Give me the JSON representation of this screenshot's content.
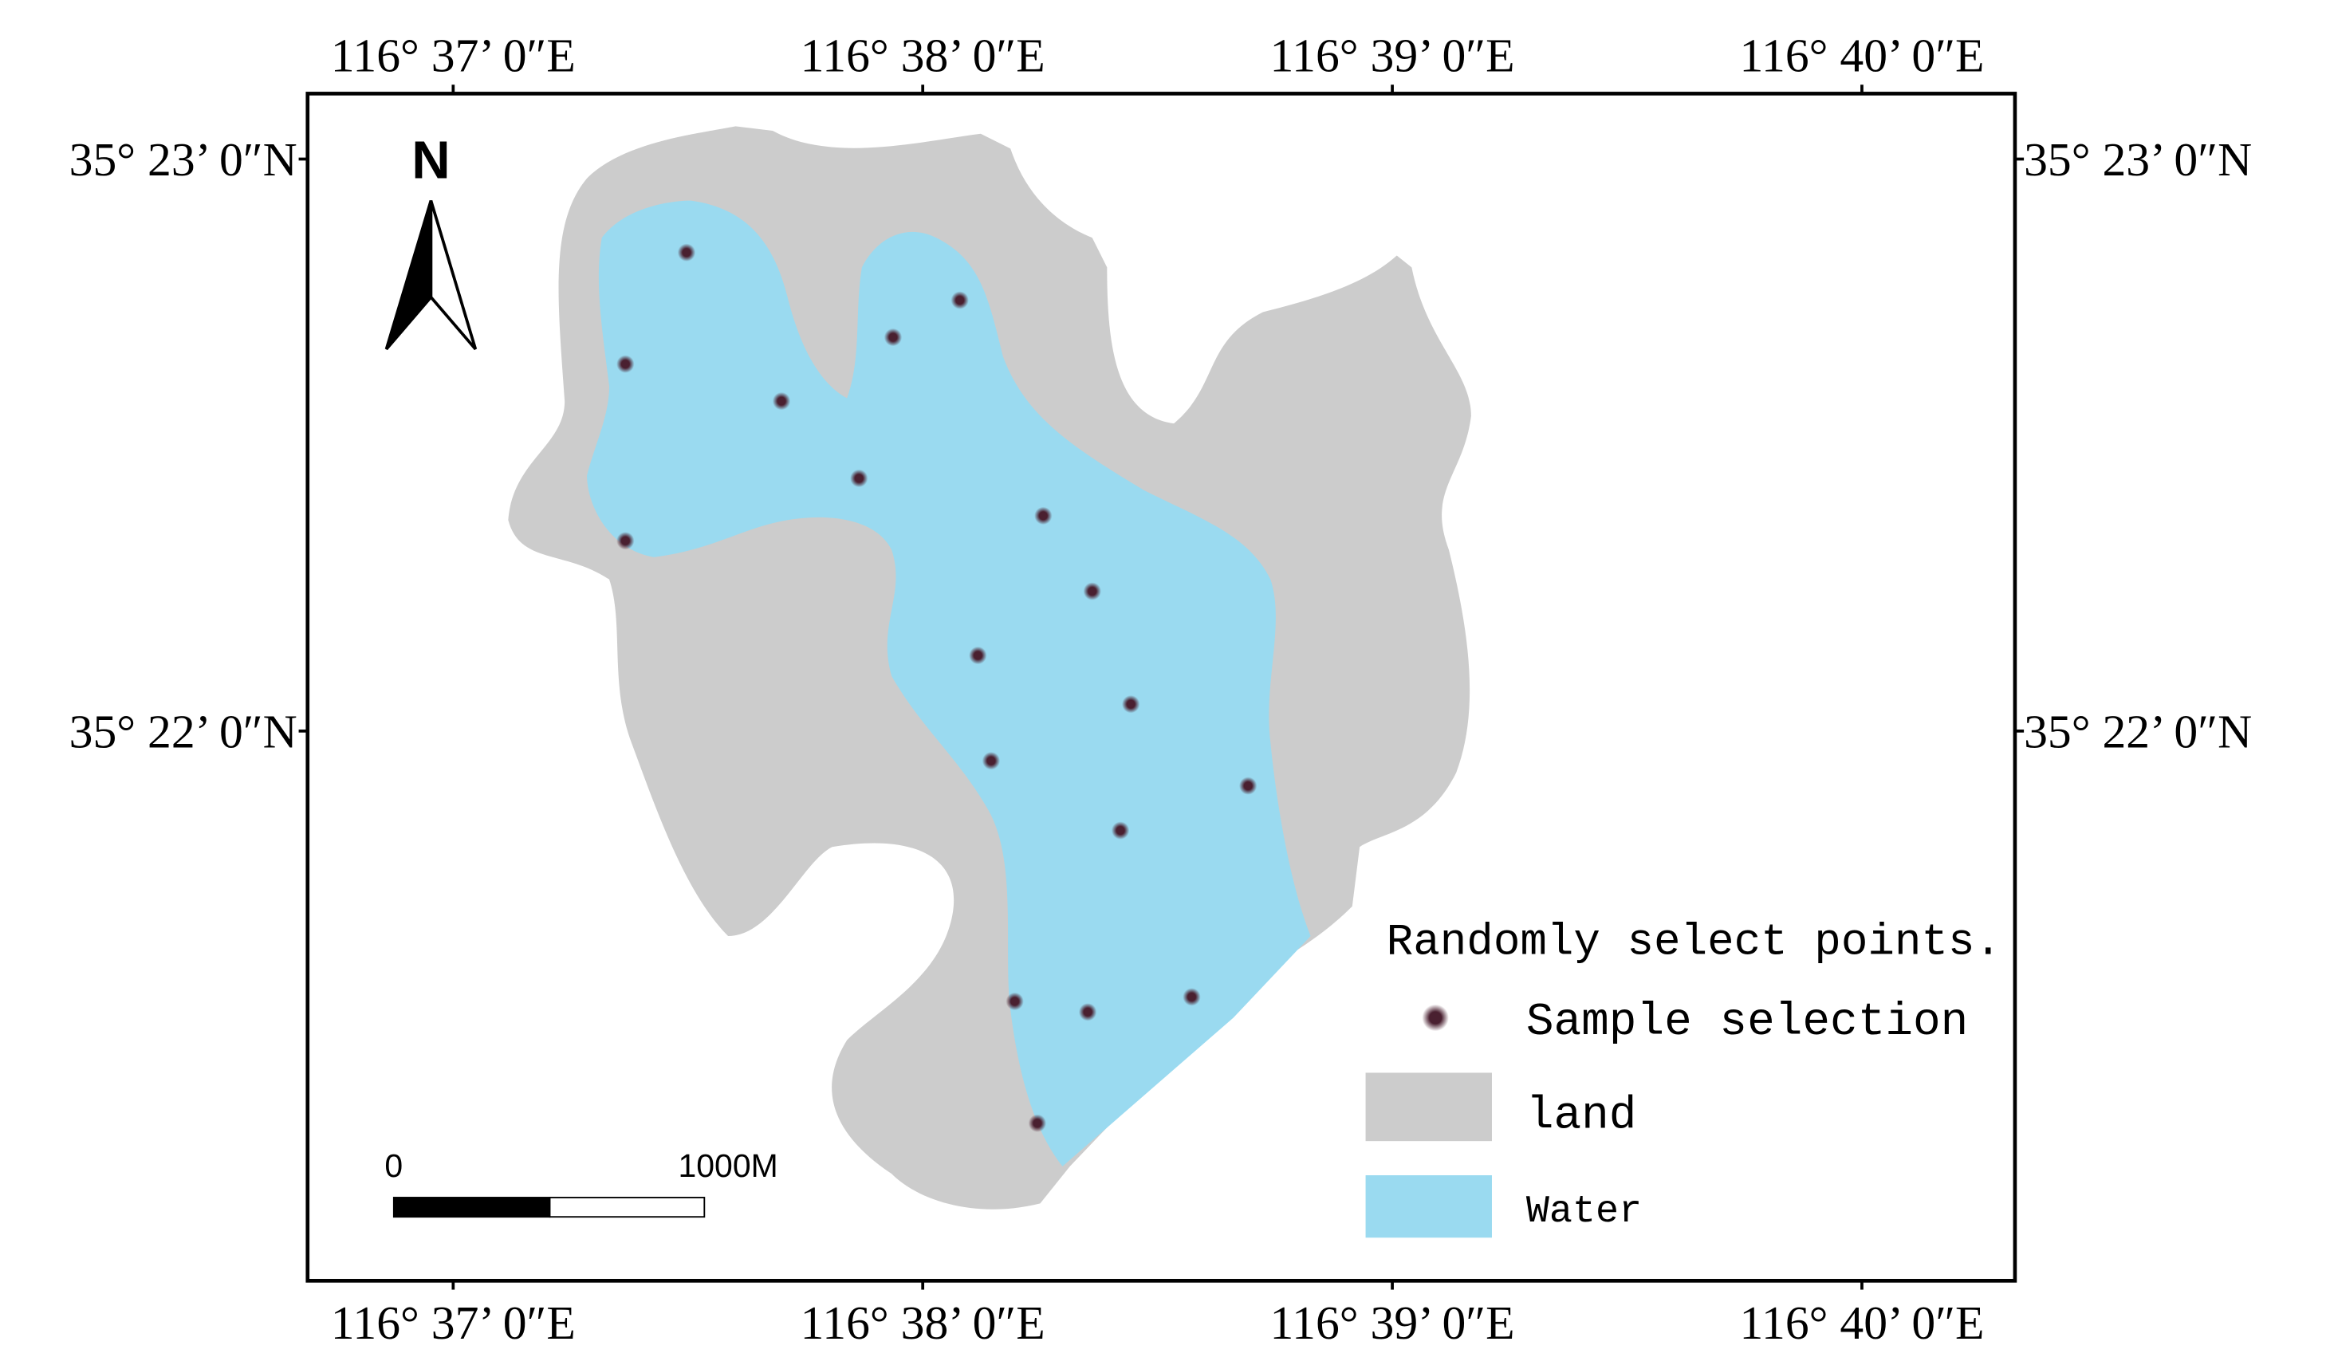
{
  "chart_data": {
    "type": "map",
    "xlim": [
      116.6115,
      116.6721
    ],
    "ylim": [
      35.35065,
      35.38524
    ],
    "xticks": [
      {
        "value": 116.616667,
        "label": "116° 37’ 0″E"
      },
      {
        "value": 116.633333,
        "label": "116° 38’ 0″E"
      },
      {
        "value": 116.65,
        "label": "116° 39’ 0″E"
      },
      {
        "value": 116.666667,
        "label": "116° 40’ 0″E"
      }
    ],
    "yticks": [
      {
        "value": 35.383333,
        "label": "35° 23’ 0″N"
      },
      {
        "value": 35.366667,
        "label": "35° 22’ 0″N"
      }
    ],
    "north_arrow": "N",
    "scale_bar": [
      "0",
      "1000M"
    ],
    "legend_title": "Randomly select points.",
    "areas": [
      {
        "name": "land",
        "color": "#cccccc"
      },
      {
        "name": "Water",
        "color": "#9adaf0"
      }
    ],
    "series": [
      {
        "name": "Sample selection",
        "color": "#4a2030",
        "x": [
          116.62495,
          116.62278,
          116.62832,
          116.62278,
          116.63107,
          116.63228,
          116.63465,
          116.63761,
          116.63935,
          116.63529,
          116.64072,
          116.63576,
          116.64488,
          116.64035,
          116.6366,
          116.63919,
          116.64288,
          116.6374
        ],
        "values": [
          35.38061,
          35.37736,
          35.37628,
          35.37221,
          35.37403,
          35.37814,
          35.37922,
          35.37294,
          35.37074,
          35.36887,
          35.36745,
          35.3658,
          35.36507,
          35.36377,
          35.35879,
          35.35848,
          35.35892,
          35.35524
        ]
      }
    ]
  }
}
